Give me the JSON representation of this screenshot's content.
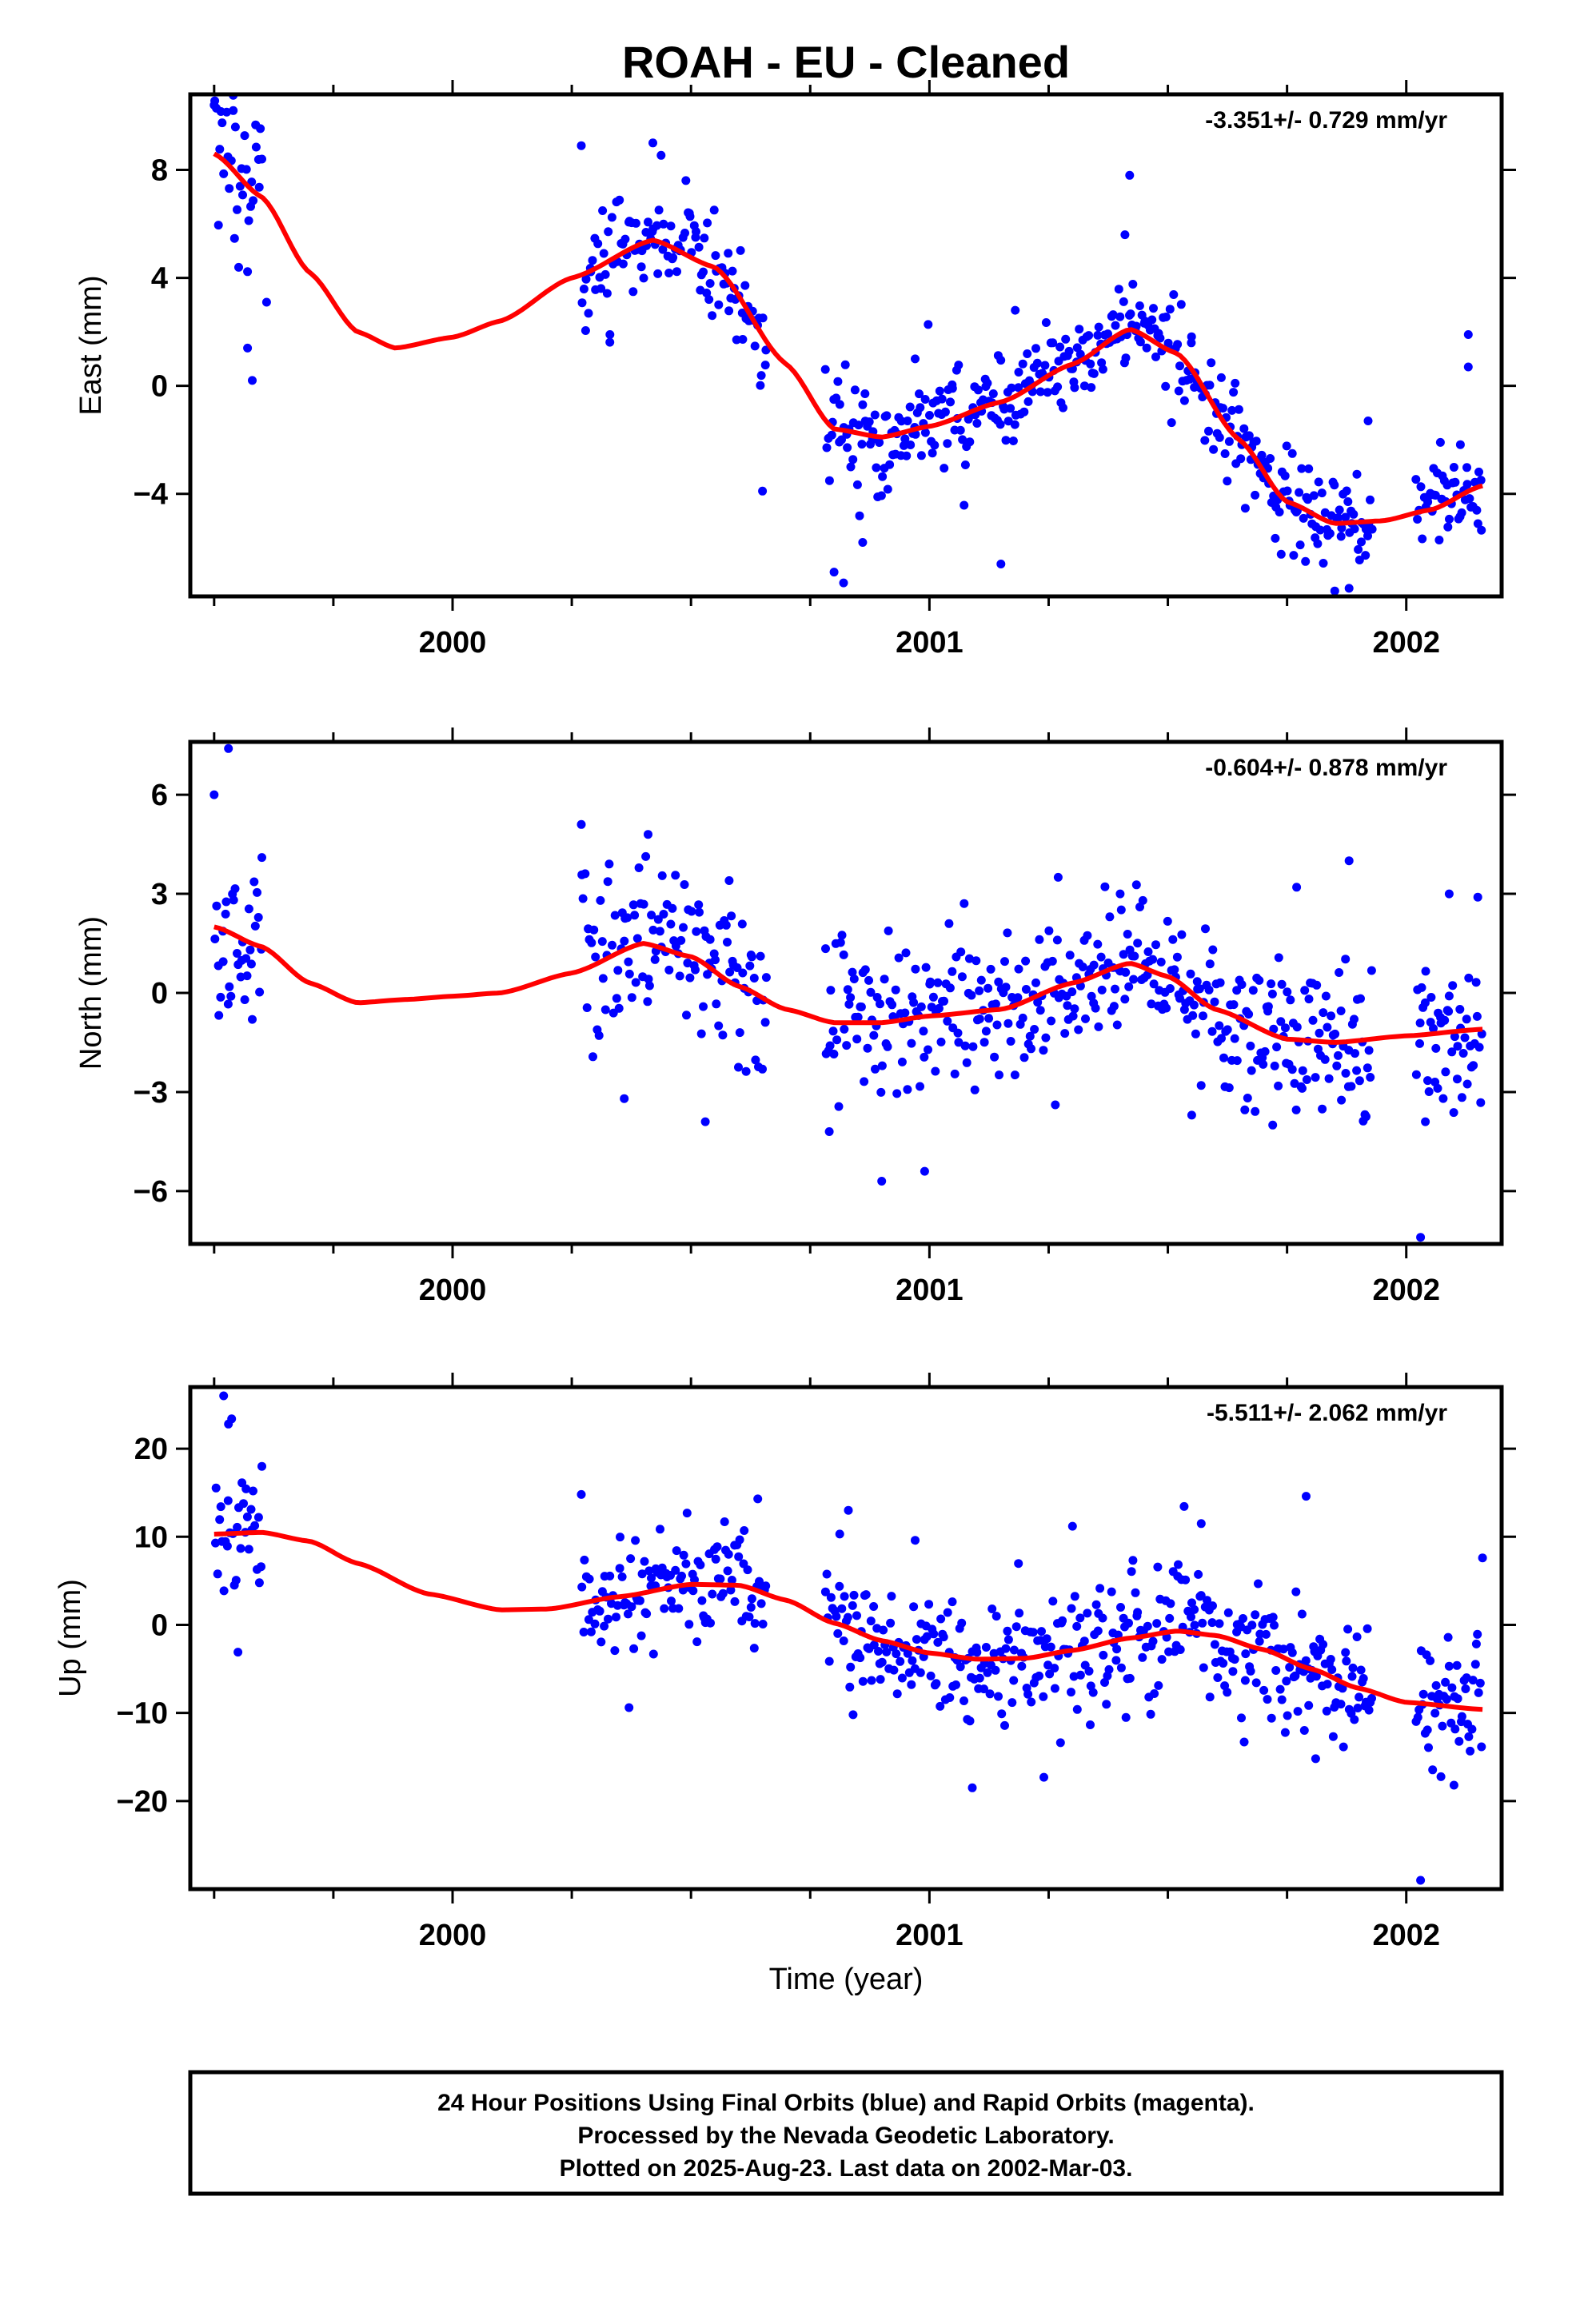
{
  "title": "ROAH  - EU - Cleaned",
  "xlabel": "Time (year)",
  "footer": [
    "24 Hour Positions Using Final Orbits (blue) and Rapid Orbits (magenta).",
    "Processed by the Nevada Geodetic Laboratory.",
    "Plotted on 2025-Aug-23. Last data on 2002-Mar-03."
  ],
  "colors": {
    "points": "#0000ff",
    "fit": "#ff0000",
    "frame": "#000000"
  },
  "chart_data": [
    {
      "type": "scatter",
      "ylabel": "East (mm)",
      "rate": "-3.351+/- 0.729 mm/yr",
      "xlim": [
        1999.45,
        2002.2
      ],
      "ylim": [
        -7.8,
        10.8
      ],
      "yticks": [
        -4,
        0,
        4,
        8
      ],
      "xticks": [
        2000,
        2001,
        2002
      ],
      "trend": [
        [
          1999.5,
          8.6
        ],
        [
          1999.6,
          7.0
        ],
        [
          1999.7,
          4.2
        ],
        [
          1999.8,
          2.0
        ],
        [
          1999.88,
          1.4
        ],
        [
          2000.0,
          1.8
        ],
        [
          2000.1,
          2.4
        ],
        [
          2000.25,
          4.0
        ],
        [
          2000.42,
          5.4
        ],
        [
          2000.55,
          4.4
        ],
        [
          2000.7,
          0.8
        ],
        [
          2000.8,
          -1.6
        ],
        [
          2000.9,
          -1.9
        ],
        [
          2001.0,
          -1.5
        ],
        [
          2001.15,
          -0.6
        ],
        [
          2001.3,
          0.8
        ],
        [
          2001.42,
          2.1
        ],
        [
          2001.52,
          1.2
        ],
        [
          2001.65,
          -2.0
        ],
        [
          2001.75,
          -4.3
        ],
        [
          2001.85,
          -5.1
        ],
        [
          2001.95,
          -5.0
        ],
        [
          2002.05,
          -4.6
        ],
        [
          2002.16,
          -3.7
        ]
      ],
      "segments": [
        {
          "start": 1999.5,
          "end": 1999.6,
          "n": 32,
          "sd": 1.8,
          "extra": [
            [
              1999.5,
              10.4
            ],
            [
              1999.54,
              10.2
            ],
            [
              1999.57,
              1.4
            ],
            [
              1999.58,
              0.2
            ],
            [
              1999.6,
              8.4
            ],
            [
              1999.61,
              3.1
            ]
          ]
        },
        {
          "start": 2000.27,
          "end": 2000.66,
          "n": 120,
          "sd": 1.1,
          "extra": [
            [
              2000.42,
              9.0
            ],
            [
              2000.27,
              8.9
            ],
            [
              2000.33,
              1.9
            ],
            [
              2000.65,
              -3.9
            ]
          ]
        },
        {
          "start": 2000.78,
          "end": 2001.08,
          "n": 95,
          "sd": 1.1,
          "extra": [
            [
              2000.8,
              -6.9
            ],
            [
              2000.82,
              -7.3
            ],
            [
              2000.86,
              -5.8
            ],
            [
              2000.97,
              1.0
            ]
          ]
        },
        {
          "start": 2001.08,
          "end": 2001.6,
          "n": 165,
          "sd": 0.9,
          "extra": [
            [
              2001.42,
              7.8
            ],
            [
              2001.41,
              5.6
            ],
            [
              2001.15,
              -6.6
            ],
            [
              2001.18,
              2.8
            ]
          ]
        },
        {
          "start": 2001.6,
          "end": 2001.93,
          "n": 110,
          "sd": 0.9,
          "extra": [
            [
              2001.85,
              -7.6
            ],
            [
              2001.88,
              -7.5
            ],
            [
              2001.92,
              -1.3
            ]
          ]
        },
        {
          "start": 2002.02,
          "end": 2002.16,
          "n": 48,
          "sd": 0.9,
          "extra": [
            [
              2002.13,
              1.9
            ],
            [
              2002.13,
              0.7
            ]
          ]
        }
      ]
    },
    {
      "type": "scatter",
      "ylabel": "North (mm)",
      "rate": "-0.604+/- 0.878 mm/yr",
      "xlim": [
        1999.45,
        2002.2
      ],
      "ylim": [
        -7.6,
        7.6
      ],
      "yticks": [
        -6,
        -3,
        0,
        3,
        6
      ],
      "xticks": [
        2000,
        2001,
        2002
      ],
      "trend": [
        [
          1999.5,
          2.0
        ],
        [
          1999.6,
          1.4
        ],
        [
          1999.7,
          0.3
        ],
        [
          1999.8,
          -0.3
        ],
        [
          1999.9,
          -0.2
        ],
        [
          2000.0,
          -0.1
        ],
        [
          2000.1,
          0.0
        ],
        [
          2000.25,
          0.6
        ],
        [
          2000.4,
          1.5
        ],
        [
          2000.5,
          1.1
        ],
        [
          2000.6,
          0.2
        ],
        [
          2000.7,
          -0.5
        ],
        [
          2000.8,
          -0.9
        ],
        [
          2000.9,
          -0.9
        ],
        [
          2001.0,
          -0.7
        ],
        [
          2001.15,
          -0.5
        ],
        [
          2001.3,
          0.3
        ],
        [
          2001.42,
          0.9
        ],
        [
          2001.5,
          0.5
        ],
        [
          2001.6,
          -0.5
        ],
        [
          2001.75,
          -1.4
        ],
        [
          2001.85,
          -1.5
        ],
        [
          2002.0,
          -1.3
        ],
        [
          2002.16,
          -1.1
        ]
      ],
      "segments": [
        {
          "start": 1999.5,
          "end": 1999.6,
          "n": 32,
          "sd": 1.3,
          "extra": [
            [
              1999.53,
              7.4
            ],
            [
              1999.5,
              6.0
            ],
            [
              1999.58,
              -0.8
            ],
            [
              1999.6,
              4.1
            ]
          ]
        },
        {
          "start": 2000.27,
          "end": 2000.66,
          "n": 120,
          "sd": 1.4,
          "extra": [
            [
              2000.27,
              5.1
            ],
            [
              2000.36,
              -3.2
            ],
            [
              2000.53,
              -3.9
            ],
            [
              2000.58,
              3.4
            ],
            [
              2000.41,
              4.8
            ]
          ]
        },
        {
          "start": 2000.78,
          "end": 2001.08,
          "n": 95,
          "sd": 1.5,
          "extra": [
            [
              2000.9,
              -5.7
            ],
            [
              2000.99,
              -5.4
            ],
            [
              2000.79,
              -4.2
            ]
          ]
        },
        {
          "start": 2001.08,
          "end": 2001.6,
          "n": 165,
          "sd": 1.0,
          "extra": [
            [
              2001.27,
              3.5
            ],
            [
              2001.55,
              -3.7
            ],
            [
              2001.4,
              3.0
            ]
          ]
        },
        {
          "start": 2001.6,
          "end": 2001.93,
          "n": 110,
          "sd": 1.3,
          "extra": [
            [
              2001.88,
              4.0
            ],
            [
              2001.72,
              -4.0
            ],
            [
              2001.77,
              3.2
            ]
          ]
        },
        {
          "start": 2002.02,
          "end": 2002.16,
          "n": 48,
          "sd": 1.3,
          "extra": [
            [
              2002.03,
              -7.4
            ],
            [
              2002.04,
              -3.9
            ],
            [
              2002.09,
              3.0
            ],
            [
              2002.15,
              2.9
            ]
          ]
        }
      ]
    },
    {
      "type": "scatter",
      "ylabel": "Up (mm)",
      "rate": "-5.511+/- 2.062 mm/yr",
      "xlim": [
        1999.45,
        2002.2
      ],
      "ylim": [
        -30,
        27
      ],
      "yticks": [
        -20,
        -10,
        0,
        10,
        20
      ],
      "xticks": [
        2000,
        2001,
        2002
      ],
      "trend": [
        [
          1999.5,
          10.3
        ],
        [
          1999.6,
          10.5
        ],
        [
          1999.7,
          9.5
        ],
        [
          1999.8,
          7.0
        ],
        [
          1999.95,
          3.5
        ],
        [
          2000.1,
          1.7
        ],
        [
          2000.2,
          1.8
        ],
        [
          2000.35,
          3.2
        ],
        [
          2000.5,
          4.6
        ],
        [
          2000.6,
          4.5
        ],
        [
          2000.7,
          2.8
        ],
        [
          2000.8,
          0.2
        ],
        [
          2000.9,
          -1.8
        ],
        [
          2001.0,
          -3.2
        ],
        [
          2001.1,
          -3.9
        ],
        [
          2001.2,
          -3.8
        ],
        [
          2001.3,
          -2.9
        ],
        [
          2001.42,
          -1.5
        ],
        [
          2001.52,
          -0.7
        ],
        [
          2001.6,
          -1.2
        ],
        [
          2001.7,
          -2.8
        ],
        [
          2001.8,
          -5.0
        ],
        [
          2001.9,
          -7.2
        ],
        [
          2002.0,
          -8.8
        ],
        [
          2002.16,
          -9.6
        ]
      ],
      "segments": [
        {
          "start": 1999.5,
          "end": 1999.6,
          "n": 32,
          "sd": 3.5,
          "extra": [
            [
              1999.52,
              26.0
            ],
            [
              1999.53,
              22.8
            ],
            [
              1999.55,
              -3.1
            ],
            [
              1999.6,
              18.0
            ]
          ]
        },
        {
          "start": 2000.27,
          "end": 2000.66,
          "n": 120,
          "sd": 3.2,
          "extra": [
            [
              2000.27,
              14.8
            ],
            [
              2000.37,
              -9.4
            ],
            [
              2000.64,
              14.3
            ]
          ]
        },
        {
          "start": 2000.78,
          "end": 2001.08,
          "n": 95,
          "sd": 3.4,
          "extra": [
            [
              2000.83,
              13.0
            ],
            [
              2000.97,
              9.6
            ],
            [
              2000.84,
              -10.2
            ]
          ]
        },
        {
          "start": 2001.08,
          "end": 2001.6,
          "n": 165,
          "sd": 3.8,
          "extra": [
            [
              2001.09,
              -18.5
            ],
            [
              2001.24,
              -17.3
            ],
            [
              2001.3,
              11.2
            ],
            [
              2001.57,
              11.5
            ]
          ]
        },
        {
          "start": 2001.6,
          "end": 2001.93,
          "n": 110,
          "sd": 3.6,
          "extra": [
            [
              2001.79,
              14.6
            ],
            [
              2001.66,
              -13.3
            ],
            [
              2001.81,
              -15.2
            ]
          ]
        },
        {
          "start": 2002.02,
          "end": 2002.16,
          "n": 48,
          "sd": 3.5,
          "extra": [
            [
              2002.03,
              -29.0
            ],
            [
              2002.1,
              -18.2
            ],
            [
              2002.16,
              7.6
            ]
          ]
        }
      ]
    }
  ]
}
